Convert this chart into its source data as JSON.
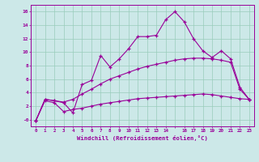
{
  "xlabel": "Windchill (Refroidissement éolien,°C)",
  "bg_color": "#cce8e8",
  "line_color": "#990099",
  "grid_color": "#99ccbb",
  "xlim": [
    -0.5,
    23.5
  ],
  "ylim": [
    -1.0,
    17.0
  ],
  "xtick_labels": [
    "0",
    "1",
    "2",
    "3",
    "4",
    "5",
    "6",
    "7",
    "8",
    "9",
    "10",
    "11",
    "12",
    "13",
    "14",
    "",
    "16",
    "17",
    "18",
    "19",
    "20",
    "21",
    "22",
    "23"
  ],
  "xtick_vals": [
    0,
    1,
    2,
    3,
    4,
    5,
    6,
    7,
    8,
    9,
    10,
    11,
    12,
    13,
    14,
    15,
    16,
    17,
    18,
    19,
    20,
    21,
    22,
    23
  ],
  "ytick_labels": [
    "-0",
    "2",
    "4",
    "6",
    "8",
    "10",
    "12",
    "14",
    "16"
  ],
  "ytick_vals": [
    0,
    2,
    4,
    6,
    8,
    10,
    12,
    14,
    16
  ],
  "line1_x": [
    0,
    1,
    2,
    3,
    4,
    5,
    6,
    7,
    8,
    9,
    10,
    11,
    12,
    13,
    14,
    15,
    16,
    17,
    18,
    19,
    20,
    21,
    22,
    23
  ],
  "line1_y": [
    -0.2,
    3.0,
    2.8,
    2.5,
    1.0,
    5.2,
    5.8,
    9.5,
    7.8,
    9.0,
    10.5,
    12.3,
    12.3,
    12.5,
    14.8,
    16.0,
    14.5,
    12.0,
    10.2,
    9.2,
    10.2,
    9.0,
    4.8,
    3.0
  ],
  "line2_x": [
    0,
    1,
    2,
    3,
    4,
    5,
    6,
    7,
    8,
    9,
    10,
    11,
    12,
    13,
    14,
    15,
    16,
    17,
    18,
    19,
    20,
    21,
    22,
    23
  ],
  "line2_y": [
    -0.2,
    3.0,
    2.8,
    2.6,
    3.0,
    3.8,
    4.5,
    5.3,
    6.0,
    6.5,
    7.0,
    7.5,
    7.9,
    8.2,
    8.5,
    8.8,
    9.0,
    9.1,
    9.1,
    9.0,
    8.8,
    8.5,
    4.5,
    3.0
  ],
  "line3_x": [
    0,
    1,
    2,
    3,
    4,
    5,
    6,
    7,
    8,
    9,
    10,
    11,
    12,
    13,
    14,
    15,
    16,
    17,
    18,
    19,
    20,
    21,
    22,
    23
  ],
  "line3_y": [
    -0.2,
    2.8,
    2.5,
    1.2,
    1.5,
    1.7,
    2.0,
    2.3,
    2.5,
    2.7,
    2.9,
    3.1,
    3.2,
    3.3,
    3.4,
    3.5,
    3.6,
    3.7,
    3.8,
    3.7,
    3.5,
    3.3,
    3.1,
    3.0
  ]
}
